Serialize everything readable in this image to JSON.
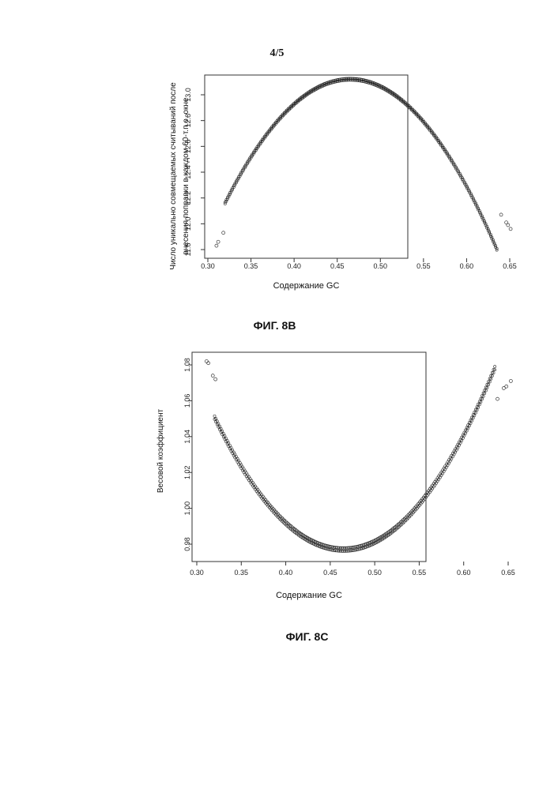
{
  "page": {
    "number": "4/5"
  },
  "figures": [
    {
      "caption": "ФИГ. 8В"
    },
    {
      "caption": "ФИГ. 8С"
    }
  ],
  "chart_data": [
    {
      "type": "scatter",
      "title": "",
      "xlabel": "Содержание GC",
      "ylabel": "Число уникально совмещаемых считываний после внесения поправки в каждом 60-т.п.о. окне",
      "ylabel_lines": [
        "Число уникально совмещаемых считываний после",
        "внесения поправки в каждом 60-т.п.о. окне"
      ],
      "xlim": [
        0.3,
        0.65
      ],
      "ylim": [
        11.78,
        13.22
      ],
      "xticks": [
        "0.30",
        "0.35",
        "0.40",
        "0.45",
        "0.50",
        "0.55",
        "0.60",
        "0.65"
      ],
      "yticks": [
        "11.8",
        "12.0",
        "12.2",
        "12.4",
        "12.6",
        "12.8",
        "13.0"
      ],
      "curve": {
        "vertex_x": 0.465,
        "vertex_y": 13.12,
        "curvature": 45.6,
        "x_range": [
          0.32,
          0.635
        ]
      },
      "outliers": [
        {
          "x": 0.31,
          "y": 11.83
        },
        {
          "x": 0.312,
          "y": 11.86
        },
        {
          "x": 0.318,
          "y": 11.93
        },
        {
          "x": 0.64,
          "y": 12.07
        },
        {
          "x": 0.646,
          "y": 12.01
        },
        {
          "x": 0.648,
          "y": 11.99
        },
        {
          "x": 0.651,
          "y": 11.96
        }
      ],
      "grid": false
    },
    {
      "type": "scatter",
      "title": "",
      "xlabel": "Содержание GC",
      "ylabel": "Весовой коэффициент",
      "ylabel_lines": [
        "Весовой коэффициент"
      ],
      "xlim": [
        0.3,
        0.65
      ],
      "ylim": [
        0.975,
        1.085
      ],
      "xticks": [
        "0.30",
        "0.35",
        "0.40",
        "0.45",
        "0.50",
        "0.55",
        "0.60",
        "0.65"
      ],
      "yticks": [
        "0.98",
        "1.00",
        "1.02",
        "1.04",
        "1.06",
        "1.08"
      ],
      "curve": {
        "vertex_x": 0.465,
        "vertex_y": 0.977,
        "curvature": 3.5,
        "x_range": [
          0.32,
          0.635
        ]
      },
      "outliers": [
        {
          "x": 0.311,
          "y": 1.082
        },
        {
          "x": 0.313,
          "y": 1.081
        },
        {
          "x": 0.318,
          "y": 1.074
        },
        {
          "x": 0.321,
          "y": 1.072
        },
        {
          "x": 0.638,
          "y": 1.061
        },
        {
          "x": 0.645,
          "y": 1.067
        },
        {
          "x": 0.648,
          "y": 1.068
        },
        {
          "x": 0.653,
          "y": 1.071
        }
      ],
      "grid": false
    }
  ]
}
